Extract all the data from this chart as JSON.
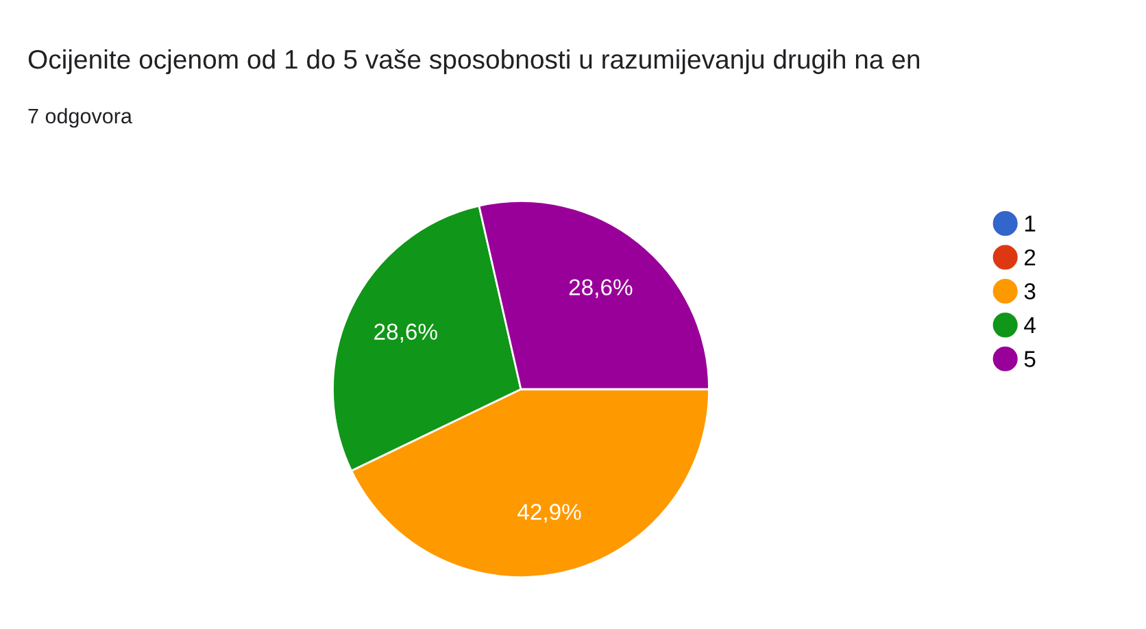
{
  "chart_data": {
    "type": "pie",
    "title": "Ocijenite ocjenom od 1 do 5 vaše sposobnosti u razumijevanju drugih na en",
    "subtitle": "7 odgovora",
    "categories": [
      "1",
      "2",
      "3",
      "4",
      "5"
    ],
    "values": [
      0,
      0,
      42.9,
      28.6,
      28.6
    ],
    "colors": [
      "#3366cc",
      "#dc3912",
      "#ff9900",
      "#109618",
      "#990099"
    ],
    "value_labels": [
      null,
      null,
      "42,9%",
      "28,6%",
      "28,6%"
    ],
    "legend": "right"
  }
}
